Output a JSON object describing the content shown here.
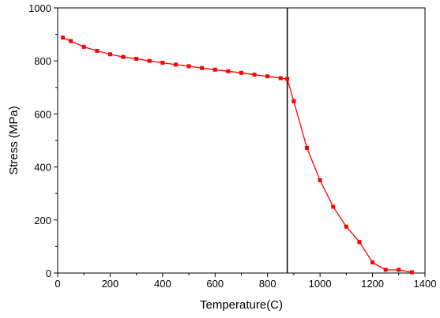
{
  "chart_data": {
    "type": "line",
    "title": "",
    "xlabel": "Temperature(C)",
    "ylabel": "Stress (MPa)",
    "xlim": [
      0,
      1400
    ],
    "ylim": [
      0,
      1000
    ],
    "x_ticks": [
      0,
      200,
      400,
      600,
      800,
      1000,
      1200,
      1400
    ],
    "y_ticks": [
      0,
      200,
      400,
      600,
      800,
      1000
    ],
    "grid": false,
    "legend": "none",
    "reference_line_x": 875,
    "series": [
      {
        "color": "#ff0000",
        "marker": "square",
        "x": [
          20,
          50,
          100,
          150,
          200,
          250,
          300,
          350,
          400,
          450,
          500,
          550,
          600,
          650,
          700,
          750,
          800,
          850,
          875,
          900,
          950,
          1000,
          1050,
          1100,
          1150,
          1200,
          1250,
          1300,
          1350
        ],
        "y": [
          888,
          875,
          853,
          838,
          825,
          815,
          808,
          800,
          793,
          786,
          780,
          773,
          767,
          761,
          755,
          748,
          742,
          735,
          732,
          648,
          472,
          350,
          250,
          175,
          117,
          40,
          12,
          12,
          3
        ]
      }
    ]
  }
}
